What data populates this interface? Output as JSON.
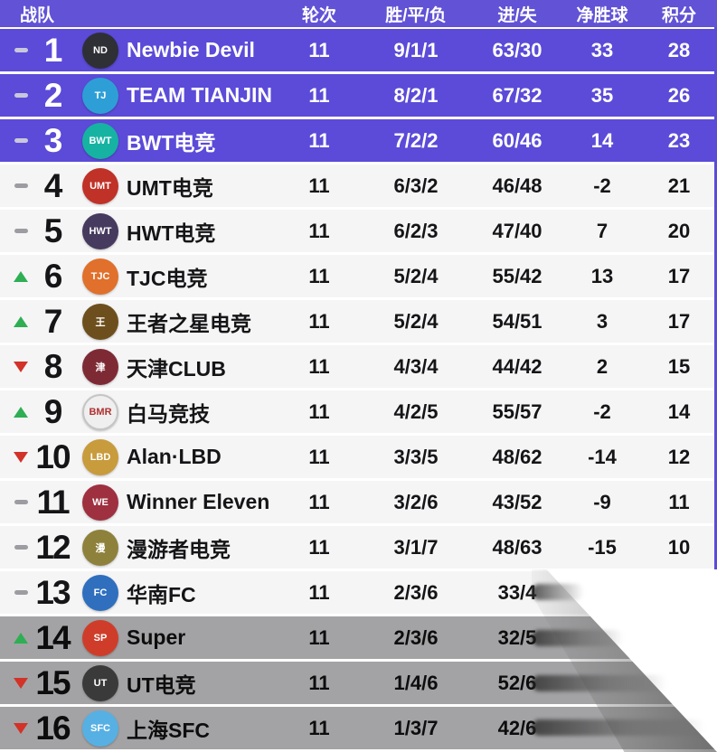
{
  "colors": {
    "header_bg": "#6152d6",
    "purple_row_bg": "#5b4bd8",
    "light_row_bg": "#f5f5f6",
    "gray_row_bg": "#a3a3a5",
    "up_arrow": "#2fae54",
    "down_arrow": "#d23227"
  },
  "header": {
    "team": "战队",
    "rounds": "轮次",
    "wdl": "胜/平/负",
    "goals": "进/失",
    "gd": "净胜球",
    "points": "积分"
  },
  "rows": [
    {
      "rank": "1",
      "movement": "same",
      "team": "Newbie Devil",
      "rounds": "11",
      "wdl": "9/1/1",
      "goals": "63/30",
      "gd": "33",
      "points": "28",
      "zone": "purple",
      "logo": {
        "color": "#2f2f36",
        "glyph": "ND",
        "light": false,
        "icon": "newbie-devil-goat-logo"
      }
    },
    {
      "rank": "2",
      "movement": "same",
      "team": "TEAM TIANJIN",
      "rounds": "11",
      "wdl": "8/2/1",
      "goals": "67/32",
      "gd": "35",
      "points": "26",
      "zone": "purple",
      "logo": {
        "color": "#2e9fd6",
        "glyph": "TJ",
        "light": false,
        "icon": "tianjin-bird-logo"
      }
    },
    {
      "rank": "3",
      "movement": "same",
      "team": "BWT电竞",
      "rounds": "11",
      "wdl": "7/2/2",
      "goals": "60/46",
      "gd": "14",
      "points": "23",
      "zone": "purple",
      "logo": {
        "color": "#16b3a3",
        "glyph": "BWT",
        "light": false,
        "icon": "bwt-bird-logo"
      }
    },
    {
      "rank": "4",
      "movement": "same",
      "team": "UMT电竞",
      "rounds": "11",
      "wdl": "6/3/2",
      "goals": "46/48",
      "gd": "-2",
      "points": "21",
      "zone": "light",
      "logo": {
        "color": "#c03128",
        "glyph": "UMT",
        "light": false,
        "icon": "umt-dragon-logo"
      }
    },
    {
      "rank": "5",
      "movement": "same",
      "team": "HWT电竞",
      "rounds": "11",
      "wdl": "6/2/3",
      "goals": "47/40",
      "gd": "7",
      "points": "20",
      "zone": "light",
      "logo": {
        "color": "#463a5e",
        "glyph": "HWT",
        "light": false,
        "icon": "hwt-hexagon-logo"
      }
    },
    {
      "rank": "6",
      "movement": "up",
      "team": "TJC电竞",
      "rounds": "11",
      "wdl": "5/2/4",
      "goals": "55/42",
      "gd": "13",
      "points": "17",
      "zone": "light",
      "logo": {
        "color": "#e0702b",
        "glyph": "TJC",
        "light": false,
        "icon": "tjc-phoenix-logo"
      }
    },
    {
      "rank": "7",
      "movement": "up",
      "team": "王者之星电竞",
      "rounds": "11",
      "wdl": "5/2/4",
      "goals": "54/51",
      "gd": "3",
      "points": "17",
      "zone": "light",
      "logo": {
        "color": "#6d4f1e",
        "glyph": "王",
        "light": false,
        "icon": "kingstar-tiger-logo"
      }
    },
    {
      "rank": "8",
      "movement": "down",
      "team": "天津CLUB",
      "rounds": "11",
      "wdl": "4/3/4",
      "goals": "44/42",
      "gd": "2",
      "points": "15",
      "zone": "light",
      "logo": {
        "color": "#7e2a35",
        "glyph": "津",
        "light": false,
        "icon": "tianjin-club-shield-logo"
      }
    },
    {
      "rank": "9",
      "movement": "up",
      "team": "白马竞技",
      "rounds": "11",
      "wdl": "4/2/5",
      "goals": "55/57",
      "gd": "-2",
      "points": "14",
      "zone": "light",
      "logo": {
        "color": "#efefef",
        "glyph": "BMR",
        "light": true,
        "icon": "white-horse-unicorn-logo"
      }
    },
    {
      "rank": "10",
      "movement": "down",
      "team": "Alan·LBD",
      "rounds": "11",
      "wdl": "3/3/5",
      "goals": "48/62",
      "gd": "-14",
      "points": "12",
      "zone": "light",
      "logo": {
        "color": "#c89b3c",
        "glyph": "LBD",
        "light": false,
        "icon": "alan-lbd-bee-logo"
      }
    },
    {
      "rank": "11",
      "movement": "same",
      "team": "Winner Eleven",
      "rounds": "11",
      "wdl": "3/2/6",
      "goals": "43/52",
      "gd": "-9",
      "points": "11",
      "zone": "light",
      "logo": {
        "color": "#9e3040",
        "glyph": "WE",
        "light": false,
        "icon": "winner-eleven-shield-logo"
      }
    },
    {
      "rank": "12",
      "movement": "same",
      "team": "漫游者电竞",
      "rounds": "11",
      "wdl": "3/1/7",
      "goals": "48/63",
      "gd": "-15",
      "points": "10",
      "zone": "light",
      "logo": {
        "color": "#8e813c",
        "glyph": "漫",
        "light": false,
        "icon": "wanderer-logo"
      }
    },
    {
      "rank": "13",
      "movement": "same",
      "team": "华南FC",
      "rounds": "11",
      "wdl": "2/3/6",
      "goals": "33/4",
      "gd": "",
      "points": "",
      "zone": "light",
      "logo": {
        "color": "#2f6fbe",
        "glyph": "FC",
        "light": false,
        "icon": "huanan-fc-shield-logo"
      }
    },
    {
      "rank": "14",
      "movement": "up",
      "team": "Super",
      "rounds": "11",
      "wdl": "2/3/6",
      "goals": "32/5",
      "gd": "",
      "points": "",
      "zone": "gray",
      "logo": {
        "color": "#cf3d2a",
        "glyph": "SP",
        "light": false,
        "icon": "super-lion-logo"
      }
    },
    {
      "rank": "15",
      "movement": "down",
      "team": "UT电竞",
      "rounds": "11",
      "wdl": "1/4/6",
      "goals": "52/6",
      "gd": "",
      "points": "",
      "zone": "gray",
      "logo": {
        "color": "#3a3a3a",
        "glyph": "UT",
        "light": false,
        "icon": "ut-wolf-logo"
      }
    },
    {
      "rank": "16",
      "movement": "down",
      "team": "上海SFC",
      "rounds": "11",
      "wdl": "1/3/7",
      "goals": "42/6",
      "gd": "",
      "points": "",
      "zone": "gray",
      "logo": {
        "color": "#57b0e3",
        "glyph": "SFC",
        "light": false,
        "icon": "shanghai-sfc-horse-logo"
      }
    }
  ]
}
